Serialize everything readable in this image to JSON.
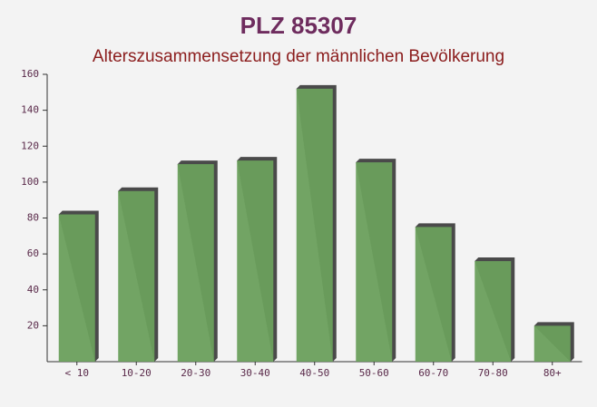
{
  "chart_data": {
    "type": "bar",
    "title": "PLZ 85307",
    "subtitle": "Alterszusammensetzung der männlichen Bevölkerung",
    "categories": [
      "< 10",
      "10-20",
      "20-30",
      "30-40",
      "40-50",
      "50-60",
      "60-70",
      "70-80",
      "80+"
    ],
    "values": [
      82,
      95,
      110,
      112,
      152,
      111,
      75,
      56,
      20
    ],
    "color": "#6a9f5c",
    "ylim": [
      0,
      160
    ],
    "yticks": [
      20,
      40,
      60,
      80,
      100,
      120,
      140,
      160
    ]
  }
}
